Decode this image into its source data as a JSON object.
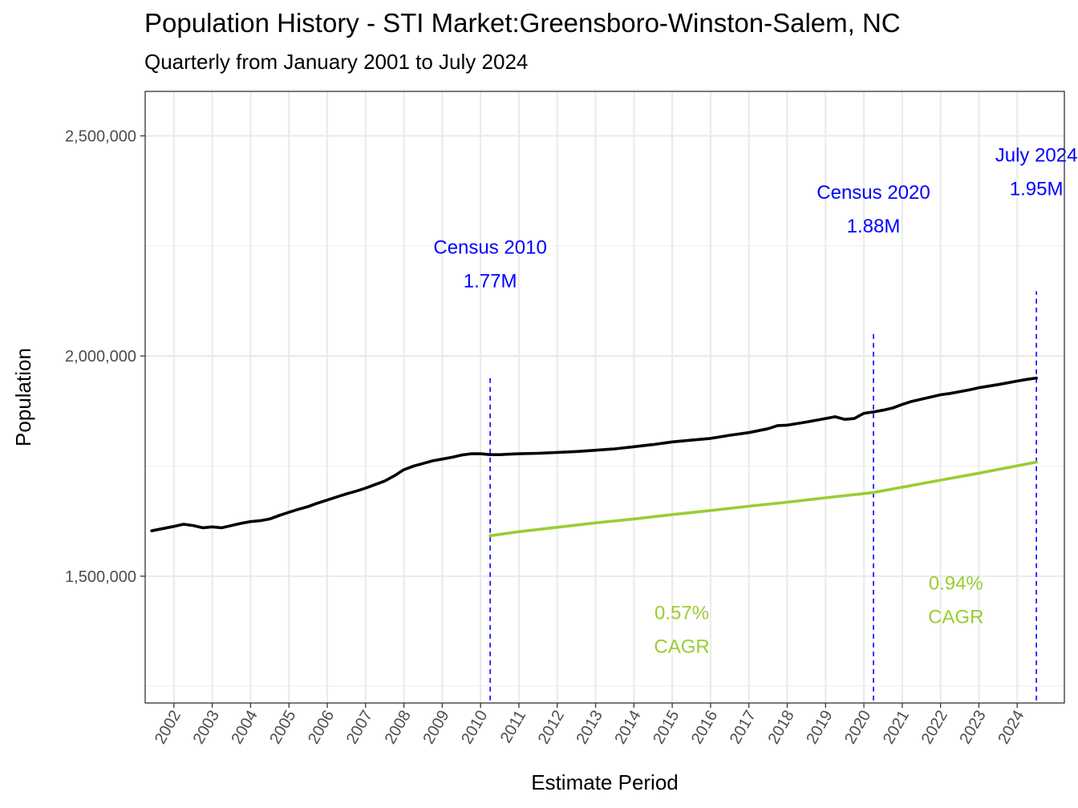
{
  "chart_data": {
    "type": "line",
    "title": "Population History - STI Market:Greensboro-Winston-Salem, NC",
    "subtitle": "Quarterly from January 2001 to July 2024",
    "xlabel": "Estimate Period",
    "ylabel": "Population",
    "xlim": [
      2001.25,
      2025.23
    ],
    "ylim": [
      1212000,
      2601000
    ],
    "y_ticks": [
      1500000,
      2000000,
      2500000
    ],
    "y_tick_labels": [
      "1,500,000",
      "2,000,000",
      "2,500,000"
    ],
    "x_tick_labels": [
      "2002",
      "2003",
      "2004",
      "2005",
      "2006",
      "2007",
      "2008",
      "2009",
      "2010",
      "2011",
      "2012",
      "2013",
      "2014",
      "2015",
      "2016",
      "2017",
      "2018",
      "2019",
      "2020",
      "2021",
      "2022",
      "2023",
      "2024"
    ],
    "series": [
      {
        "name": "Population estimate",
        "color": "#000000",
        "points": [
          [
            2001.42,
            1603000
          ],
          [
            2002.0,
            1613000
          ],
          [
            2002.25,
            1618000
          ],
          [
            2002.5,
            1615000
          ],
          [
            2002.75,
            1610000
          ],
          [
            2003.0,
            1612000
          ],
          [
            2003.25,
            1610000
          ],
          [
            2003.5,
            1615000
          ],
          [
            2003.75,
            1620000
          ],
          [
            2004.0,
            1624000
          ],
          [
            2004.25,
            1626000
          ],
          [
            2004.5,
            1630000
          ],
          [
            2004.75,
            1638000
          ],
          [
            2005.0,
            1645000
          ],
          [
            2005.25,
            1652000
          ],
          [
            2005.5,
            1658000
          ],
          [
            2005.75,
            1666000
          ],
          [
            2006.0,
            1673000
          ],
          [
            2006.25,
            1680000
          ],
          [
            2006.5,
            1687000
          ],
          [
            2006.75,
            1693000
          ],
          [
            2007.0,
            1700000
          ],
          [
            2007.25,
            1708000
          ],
          [
            2007.5,
            1716000
          ],
          [
            2007.75,
            1728000
          ],
          [
            2008.0,
            1742000
          ],
          [
            2008.25,
            1750000
          ],
          [
            2008.5,
            1756000
          ],
          [
            2008.75,
            1762000
          ],
          [
            2009.0,
            1766000
          ],
          [
            2009.25,
            1770000
          ],
          [
            2009.5,
            1775000
          ],
          [
            2009.75,
            1778000
          ],
          [
            2010.0,
            1778000
          ],
          [
            2010.25,
            1776000
          ],
          [
            2010.5,
            1776000
          ],
          [
            2010.75,
            1777000
          ],
          [
            2011.0,
            1778000
          ],
          [
            2011.5,
            1779000
          ],
          [
            2012.0,
            1781000
          ],
          [
            2012.5,
            1783000
          ],
          [
            2013.0,
            1786000
          ],
          [
            2013.5,
            1789000
          ],
          [
            2014.0,
            1794000
          ],
          [
            2014.5,
            1799000
          ],
          [
            2015.0,
            1805000
          ],
          [
            2015.5,
            1809000
          ],
          [
            2016.0,
            1813000
          ],
          [
            2016.5,
            1820000
          ],
          [
            2017.0,
            1826000
          ],
          [
            2017.5,
            1835000
          ],
          [
            2017.75,
            1842000
          ],
          [
            2018.0,
            1843000
          ],
          [
            2018.5,
            1850000
          ],
          [
            2019.0,
            1858000
          ],
          [
            2019.25,
            1862000
          ],
          [
            2019.5,
            1856000
          ],
          [
            2019.75,
            1858000
          ],
          [
            2020.0,
            1870000
          ],
          [
            2020.25,
            1873000
          ],
          [
            2020.5,
            1877000
          ],
          [
            2020.75,
            1882000
          ],
          [
            2021.0,
            1890000
          ],
          [
            2021.25,
            1897000
          ],
          [
            2021.5,
            1902000
          ],
          [
            2021.75,
            1907000
          ],
          [
            2022.0,
            1912000
          ],
          [
            2022.25,
            1915000
          ],
          [
            2022.5,
            1919000
          ],
          [
            2022.75,
            1923000
          ],
          [
            2023.0,
            1928000
          ],
          [
            2023.5,
            1935000
          ],
          [
            2024.0,
            1943000
          ],
          [
            2024.25,
            1947000
          ],
          [
            2024.5,
            1950000
          ]
        ]
      },
      {
        "name": "CAGR trend",
        "color": "#9acd32",
        "points": [
          [
            2010.25,
            1592000
          ],
          [
            2011.0,
            1601000
          ],
          [
            2012.0,
            1611000
          ],
          [
            2013.0,
            1621000
          ],
          [
            2014.0,
            1630000
          ],
          [
            2015.0,
            1640000
          ],
          [
            2016.0,
            1649000
          ],
          [
            2017.0,
            1659000
          ],
          [
            2018.0,
            1668000
          ],
          [
            2019.0,
            1678000
          ],
          [
            2020.25,
            1690000
          ],
          [
            2021.0,
            1702000
          ],
          [
            2022.0,
            1718000
          ],
          [
            2023.0,
            1734000
          ],
          [
            2024.5,
            1759000
          ]
        ]
      }
    ],
    "vlines": [
      {
        "x": 2010.25,
        "y_from": 1218000,
        "y_to": 1957000,
        "color": "#0000ff"
      },
      {
        "x": 2020.25,
        "y_from": 1218000,
        "y_to": 2052000,
        "color": "#0000ff"
      },
      {
        "x": 2024.5,
        "y_from": 1218000,
        "y_to": 2147000,
        "color": "#0000ff"
      }
    ],
    "annotations": [
      {
        "lines": [
          "Census 2010",
          "1.77M"
        ],
        "x": 2010.25,
        "y": 2232000,
        "color": "#0000ff"
      },
      {
        "lines": [
          "Census 2020",
          "1.88M"
        ],
        "x": 2020.25,
        "y": 2357000,
        "color": "#0000ff"
      },
      {
        "lines": [
          "July 2024",
          "1.95M"
        ],
        "x": 2024.5,
        "y": 2442000,
        "color": "#0000ff"
      },
      {
        "lines": [
          "0.57%",
          "CAGR"
        ],
        "x": 2015.25,
        "y": 1402000,
        "color": "#9acd32"
      },
      {
        "lines": [
          "0.94%",
          "CAGR"
        ],
        "x": 2022.4,
        "y": 1470000,
        "color": "#9acd32"
      }
    ]
  }
}
